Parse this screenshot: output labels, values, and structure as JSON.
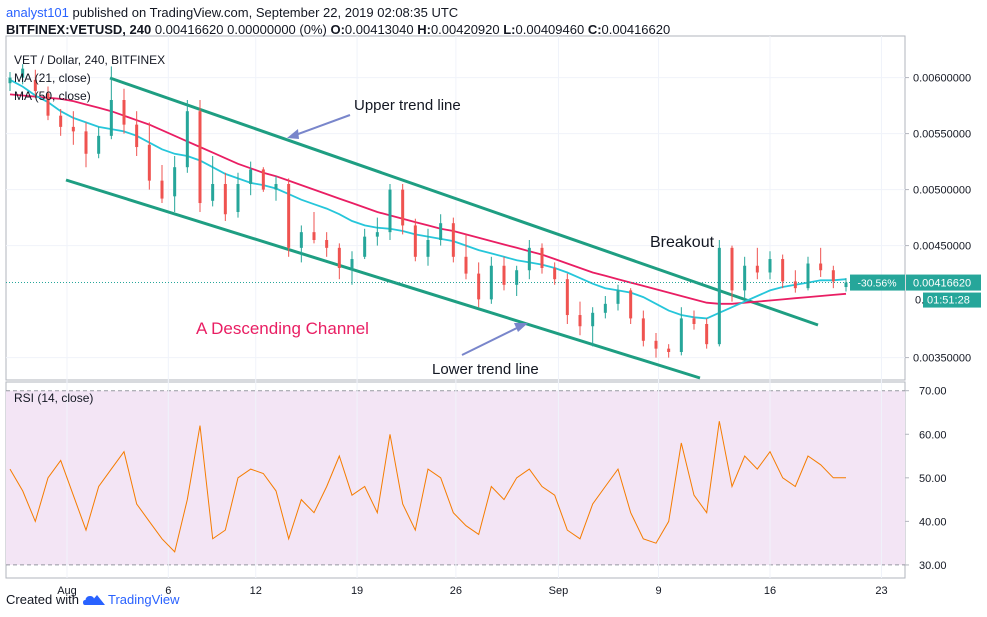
{
  "header": {
    "user": "analyst101",
    "published": " published on TradingView.com, September 22, 2019 02:08:35 UTC",
    "symbol": "BITFINEX:VETUSD, 240",
    "quote": "  0.00416620 0.00000000 (0%) ",
    "o_label": "O:",
    "o_value": "0.00413040 ",
    "h_label": "H:",
    "h_value": "0.00420920 ",
    "l_label": "L:",
    "l_value": "0.00409460 ",
    "c_label": "C:",
    "c_value": "0.00416620"
  },
  "legend": {
    "title": "VET / Dollar, 240, BITFINEX",
    "ma1": "MA (21, close)",
    "ma2": "MA (50, close)",
    "rsi": "RSI (14, close)"
  },
  "annotations": {
    "upper": "Upper trend line",
    "lower": "Lower trend line",
    "breakout": "Breakout",
    "channel": "A  Descending Channel"
  },
  "price_tag": {
    "change": "-30.56%",
    "price": "0.00416620",
    "countdown": "01:51:28"
  },
  "footer": {
    "created": "Created with",
    "brand": "TradingView"
  },
  "colors": {
    "up": "#26a69a",
    "down": "#ef5350",
    "ma21": "#26c6da",
    "ma50": "#e91e63",
    "trend": "#1e9e82",
    "arrow": "#7986cb",
    "rsi": "#f57c00",
    "rsi_bg": "#f3e5f5",
    "channel_text": "#e91e63"
  },
  "chart_data": {
    "type": "candlestick",
    "title": "VET / Dollar, 240, BITFINEX",
    "x_ticks": [
      "Aug",
      "6",
      "12",
      "19",
      "26",
      "Sep",
      "9",
      "16",
      "23"
    ],
    "price_axis": {
      "ticks": [
        "0.00600000",
        "0.00550000",
        "0.00500000",
        "0.00450000",
        "0.00350000"
      ],
      "ylim": [
        0.0033,
        0.0063
      ]
    },
    "rsi_axis": {
      "ticks": [
        "70.00",
        "60.00",
        "50.00",
        "40.00",
        "30.00"
      ],
      "ylim": [
        27,
        72
      ]
    },
    "candles": [
      [
        0.00595,
        0.00605,
        0.00588,
        0.006
      ],
      [
        0.006,
        0.00612,
        0.00594,
        0.00608
      ],
      [
        0.00598,
        0.00607,
        0.00582,
        0.00588
      ],
      [
        0.00586,
        0.00592,
        0.00562,
        0.00566
      ],
      [
        0.00566,
        0.00572,
        0.00548,
        0.00556
      ],
      [
        0.00556,
        0.0057,
        0.0054,
        0.00552
      ],
      [
        0.00552,
        0.0056,
        0.0052,
        0.00532
      ],
      [
        0.00532,
        0.00556,
        0.00528,
        0.00548
      ],
      [
        0.00548,
        0.0061,
        0.00545,
        0.0058
      ],
      [
        0.0058,
        0.0059,
        0.0055,
        0.00558
      ],
      [
        0.00558,
        0.0057,
        0.0053,
        0.00538
      ],
      [
        0.0054,
        0.0056,
        0.005,
        0.00508
      ],
      [
        0.00508,
        0.00522,
        0.00488,
        0.00492
      ],
      [
        0.00494,
        0.0053,
        0.0048,
        0.0052
      ],
      [
        0.0052,
        0.0058,
        0.00515,
        0.0057
      ],
      [
        0.0057,
        0.0058,
        0.0048,
        0.00488
      ],
      [
        0.0049,
        0.0053,
        0.00485,
        0.00505
      ],
      [
        0.00505,
        0.00515,
        0.00472,
        0.00478
      ],
      [
        0.0048,
        0.00515,
        0.00475,
        0.00505
      ],
      [
        0.00505,
        0.00525,
        0.00495,
        0.00518
      ],
      [
        0.00518,
        0.0052,
        0.00498,
        0.005
      ],
      [
        0.005,
        0.00512,
        0.0049,
        0.00505
      ],
      [
        0.00505,
        0.0051,
        0.0044,
        0.00448
      ],
      [
        0.00448,
        0.00468,
        0.00435,
        0.00462
      ],
      [
        0.00462,
        0.0048,
        0.00452,
        0.00455
      ],
      [
        0.00455,
        0.00462,
        0.0044,
        0.00448
      ],
      [
        0.00448,
        0.00452,
        0.0042,
        0.0043
      ],
      [
        0.0043,
        0.00445,
        0.00415,
        0.00438
      ],
      [
        0.0044,
        0.00465,
        0.00438,
        0.00458
      ],
      [
        0.00458,
        0.00475,
        0.0045,
        0.00462
      ],
      [
        0.00462,
        0.00505,
        0.00455,
        0.005
      ],
      [
        0.005,
        0.00505,
        0.0046,
        0.00468
      ],
      [
        0.00468,
        0.00474,
        0.00436,
        0.0044
      ],
      [
        0.0044,
        0.00465,
        0.00432,
        0.00455
      ],
      [
        0.00455,
        0.00478,
        0.0045,
        0.0047
      ],
      [
        0.0047,
        0.00475,
        0.00435,
        0.0044
      ],
      [
        0.0044,
        0.0046,
        0.0042,
        0.00425
      ],
      [
        0.00425,
        0.00435,
        0.00395,
        0.00402
      ],
      [
        0.00402,
        0.0044,
        0.00398,
        0.00432
      ],
      [
        0.00432,
        0.0044,
        0.0041,
        0.00415
      ],
      [
        0.00415,
        0.00432,
        0.00405,
        0.00428
      ],
      [
        0.00428,
        0.00455,
        0.0042,
        0.00448
      ],
      [
        0.00448,
        0.00452,
        0.00425,
        0.0043
      ],
      [
        0.0043,
        0.00435,
        0.00415,
        0.0042
      ],
      [
        0.0042,
        0.00425,
        0.0038,
        0.00388
      ],
      [
        0.00388,
        0.004,
        0.0037,
        0.00378
      ],
      [
        0.00378,
        0.00395,
        0.0036,
        0.0039
      ],
      [
        0.0039,
        0.00405,
        0.00385,
        0.00398
      ],
      [
        0.00398,
        0.00415,
        0.00392,
        0.0041
      ],
      [
        0.0041,
        0.00412,
        0.0038,
        0.00385
      ],
      [
        0.00385,
        0.00392,
        0.0036,
        0.00365
      ],
      [
        0.00365,
        0.00372,
        0.0035,
        0.00358
      ],
      [
        0.00358,
        0.00362,
        0.0035,
        0.00355
      ],
      [
        0.00355,
        0.00395,
        0.00352,
        0.00385
      ],
      [
        0.00385,
        0.00392,
        0.00375,
        0.0038
      ],
      [
        0.0038,
        0.00385,
        0.00358,
        0.00362
      ],
      [
        0.00362,
        0.00455,
        0.0036,
        0.00448
      ],
      [
        0.00448,
        0.0045,
        0.004,
        0.0041
      ],
      [
        0.0041,
        0.0044,
        0.00402,
        0.00432
      ],
      [
        0.00432,
        0.00448,
        0.0042,
        0.00426
      ],
      [
        0.00426,
        0.00445,
        0.0042,
        0.00438
      ],
      [
        0.00438,
        0.00442,
        0.00412,
        0.00418
      ],
      [
        0.00418,
        0.00428,
        0.00408,
        0.00412
      ],
      [
        0.00412,
        0.0044,
        0.0041,
        0.00434
      ],
      [
        0.00434,
        0.00448,
        0.00422,
        0.00428
      ],
      [
        0.00428,
        0.00432,
        0.00412,
        0.00418
      ],
      [
        0.00413,
        0.00421,
        0.00409,
        0.00417
      ]
    ],
    "series": [
      {
        "name": "MA (21, close)",
        "values": [
          0.00598,
          0.00592,
          0.00584,
          0.00578,
          0.0057,
          0.00564,
          0.0056,
          0.00556,
          0.00554,
          0.00552,
          0.00548,
          0.00542,
          0.00536,
          0.00532,
          0.0053,
          0.00526,
          0.0052,
          0.00514,
          0.0051,
          0.00506,
          0.00504,
          0.00501,
          0.00496,
          0.00491,
          0.00487,
          0.00483,
          0.00478,
          0.00472,
          0.00468,
          0.00466,
          0.00465,
          0.00463,
          0.0046,
          0.00458,
          0.00456,
          0.00454,
          0.0045,
          0.00446,
          0.00443,
          0.0044,
          0.00437,
          0.00435,
          0.00433,
          0.0043,
          0.00426,
          0.00421,
          0.00416,
          0.00412,
          0.0041,
          0.00408,
          0.00404,
          0.00398,
          0.00392,
          0.00388,
          0.00386,
          0.00385,
          0.0039,
          0.00395,
          0.004,
          0.00405,
          0.0041,
          0.00413,
          0.00415,
          0.00417,
          0.00419,
          0.00419,
          0.0042
        ]
      },
      {
        "name": "MA (50, close)",
        "values": [
          0.00585,
          0.00584,
          0.00583,
          0.00582,
          0.00581,
          0.00579,
          0.00576,
          0.00573,
          0.0057,
          0.00566,
          0.00562,
          0.00558,
          0.00553,
          0.00548,
          0.00543,
          0.00538,
          0.00533,
          0.00528,
          0.00523,
          0.00519,
          0.00515,
          0.00512,
          0.00508,
          0.00504,
          0.005,
          0.00496,
          0.00492,
          0.00488,
          0.00484,
          0.0048,
          0.00477,
          0.00474,
          0.00471,
          0.00468,
          0.00465,
          0.00463,
          0.0046,
          0.00457,
          0.00454,
          0.00451,
          0.00448,
          0.00445,
          0.00442,
          0.00438,
          0.00434,
          0.0043,
          0.00426,
          0.00423,
          0.0042,
          0.00417,
          0.00414,
          0.00411,
          0.00408,
          0.00405,
          0.00402,
          0.00399,
          0.00398,
          0.00398,
          0.00399,
          0.004,
          0.00401,
          0.00402,
          0.00403,
          0.00404,
          0.00405,
          0.00406,
          0.00407
        ]
      },
      {
        "name": "RSI (14, close)",
        "values": [
          52,
          47,
          40,
          50,
          54,
          46,
          38,
          48,
          52,
          56,
          44,
          40,
          36,
          33,
          45,
          62,
          36,
          38,
          50,
          52,
          51,
          47,
          36,
          45,
          42,
          48,
          55,
          46,
          48,
          42,
          60,
          44,
          38,
          52,
          50,
          42,
          39,
          37,
          48,
          45,
          50,
          52,
          48,
          46,
          38,
          36,
          44,
          48,
          52,
          42,
          36,
          35,
          40,
          58,
          46,
          42,
          63,
          48,
          55,
          52,
          56,
          50,
          48,
          55,
          53,
          50,
          50
        ]
      }
    ]
  }
}
